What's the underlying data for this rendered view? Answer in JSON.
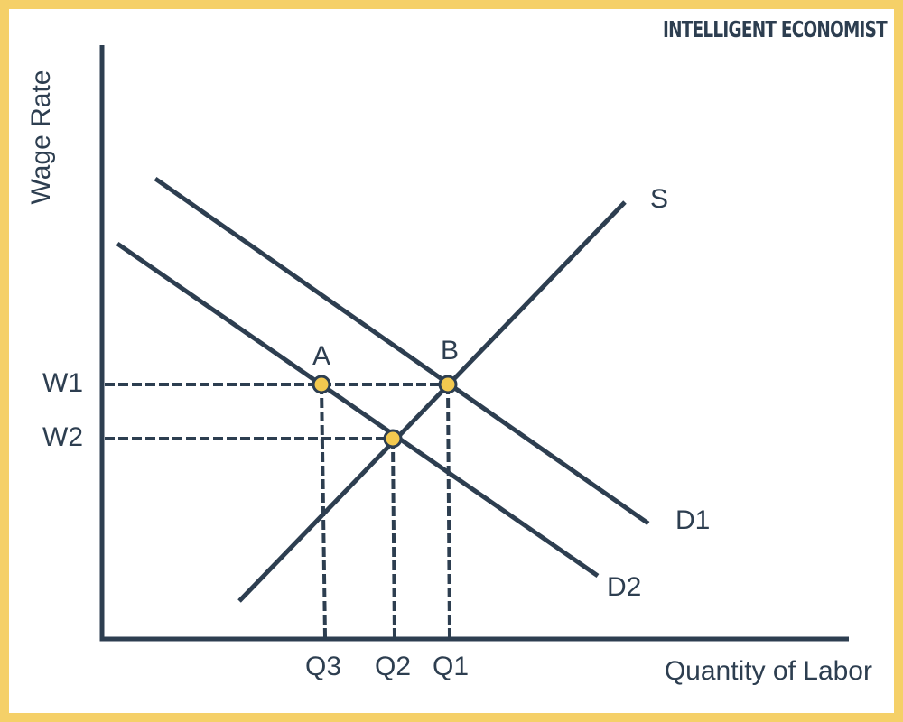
{
  "brand": "INTELLIGENT ECONOMIST",
  "axes": {
    "y_label": "Wage Rate",
    "x_label": "Quantity of Labor"
  },
  "curves": {
    "supply": "S",
    "demand_1": "D1",
    "demand_2": "D2"
  },
  "points": {
    "a": "A",
    "b": "B"
  },
  "wages": {
    "w1": "W1",
    "w2": "W2"
  },
  "quantities": {
    "q3": "Q3",
    "q2": "Q2",
    "q1": "Q1"
  }
}
